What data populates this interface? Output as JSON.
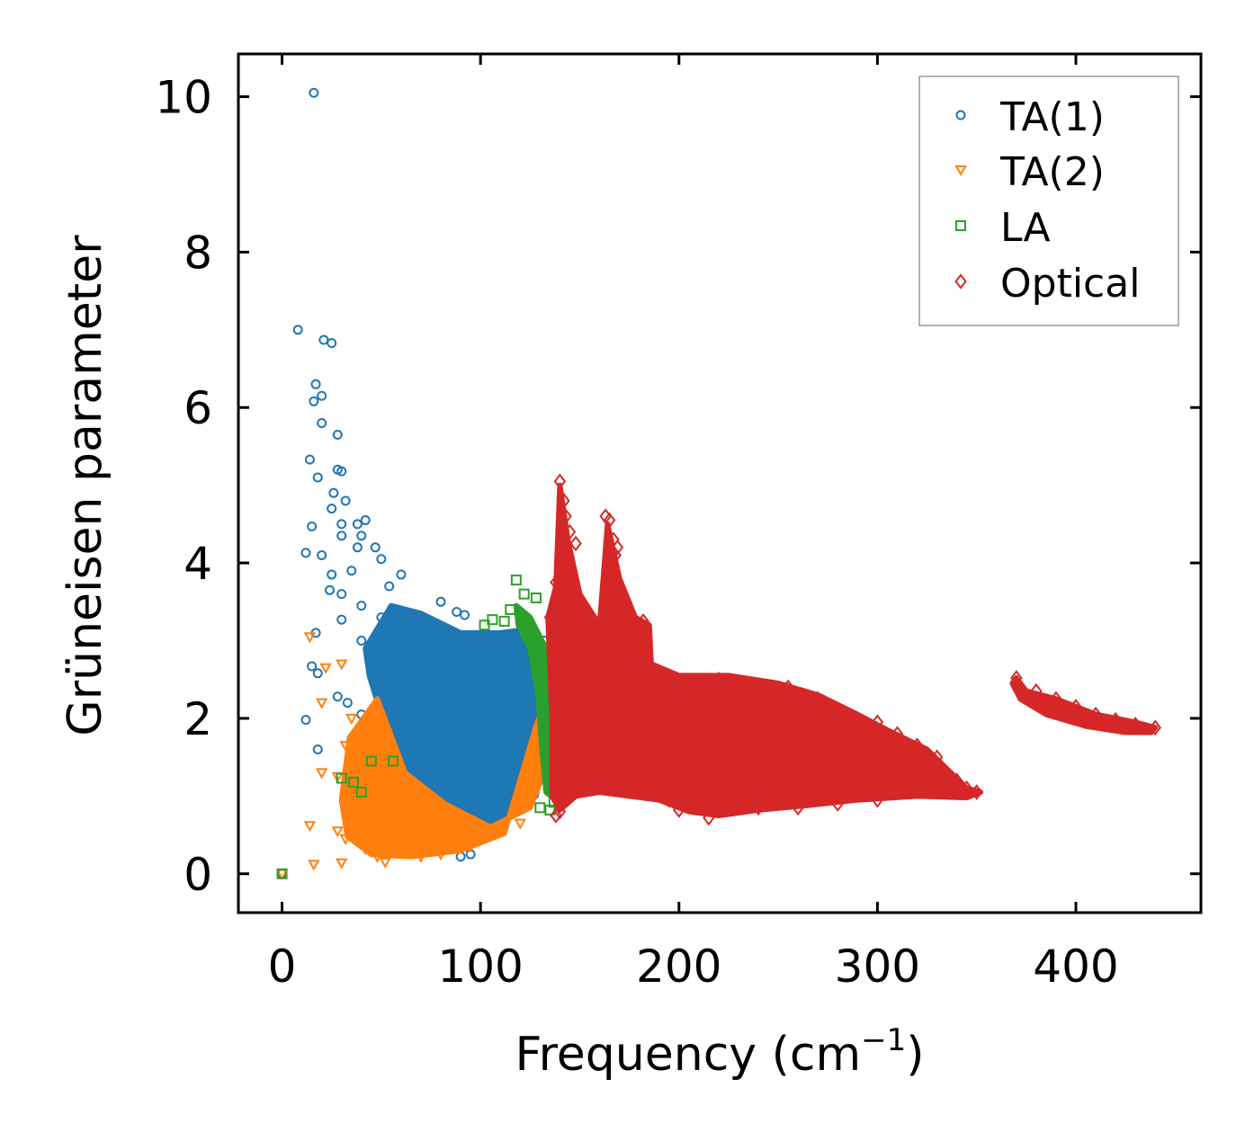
{
  "chart_data": {
    "type": "scatter",
    "title": "",
    "xlabel": "Frequency (cm",
    "xlabel_sup": "−1",
    "xlabel_end": ")",
    "ylabel": "Grüneisen parameter",
    "xlim": [
      -22,
      463
    ],
    "ylim": [
      -0.5,
      10.55
    ],
    "xticks": [
      0,
      100,
      200,
      300,
      400
    ],
    "yticks": [
      0,
      2,
      4,
      6,
      8,
      10
    ],
    "xtick_labels": [
      "0",
      "100",
      "200",
      "300",
      "400"
    ],
    "ytick_labels": [
      "0",
      "2",
      "4",
      "6",
      "8",
      "10"
    ],
    "legend_position": "top-right",
    "series": [
      {
        "name": "TA(1)",
        "marker": "circle",
        "color": "#1f77b4",
        "points": [
          [
            0,
            0
          ],
          [
            16,
            10.05
          ],
          [
            8,
            7
          ],
          [
            21,
            6.87
          ],
          [
            25,
            6.83
          ],
          [
            17,
            6.3
          ],
          [
            20,
            6.15
          ],
          [
            16,
            6.08
          ],
          [
            20,
            5.8
          ],
          [
            28,
            5.65
          ],
          [
            14,
            5.33
          ],
          [
            28,
            5.2
          ],
          [
            18,
            5.1
          ],
          [
            30,
            5.18
          ],
          [
            26,
            4.9
          ],
          [
            32,
            4.8
          ],
          [
            25,
            4.7
          ],
          [
            15,
            4.47
          ],
          [
            30,
            4.5
          ],
          [
            38,
            4.5
          ],
          [
            42,
            4.55
          ],
          [
            30,
            4.35
          ],
          [
            40,
            4.35
          ],
          [
            38,
            4.2
          ],
          [
            12,
            4.13
          ],
          [
            20,
            4.1
          ],
          [
            47,
            4.2
          ],
          [
            50,
            4.05
          ],
          [
            25,
            3.85
          ],
          [
            35,
            3.9
          ],
          [
            60,
            3.85
          ],
          [
            24,
            3.65
          ],
          [
            30,
            3.6
          ],
          [
            40,
            3.45
          ],
          [
            54,
            3.7
          ],
          [
            80,
            3.5
          ],
          [
            88,
            3.37
          ],
          [
            92,
            3.33
          ],
          [
            30,
            3.27
          ],
          [
            40,
            3.0
          ],
          [
            17,
            3.1
          ],
          [
            15,
            2.67
          ],
          [
            18,
            2.58
          ],
          [
            33,
            2.2
          ],
          [
            28,
            2.28
          ],
          [
            12,
            1.98
          ],
          [
            18,
            1.6
          ],
          [
            40,
            2.05
          ],
          [
            55,
            1.95
          ],
          [
            62,
            2.1
          ],
          [
            45,
            1.82
          ],
          [
            60,
            1.7
          ],
          [
            55,
            1.25
          ],
          [
            65,
            1.0
          ],
          [
            55,
            0.75
          ],
          [
            65,
            0.6
          ],
          [
            70,
            0.55
          ],
          [
            75,
            0.4
          ],
          [
            82,
            0.48
          ],
          [
            55,
            0.35
          ],
          [
            90,
            0.22
          ],
          [
            95,
            0.25
          ],
          [
            100,
            0.45
          ],
          [
            120,
            1.25
          ],
          [
            125,
            1.6
          ],
          [
            130,
            2.15
          ],
          [
            132,
            3.0
          ],
          [
            128,
            2.9
          ],
          [
            50,
            3.3
          ],
          [
            68,
            3.25
          ],
          [
            70,
            2.9
          ],
          [
            110,
            2.2
          ],
          [
            105,
            2.6
          ],
          [
            75,
            2.65
          ]
        ],
        "cloud": [
          [
            42,
            2.9
          ],
          [
            55,
            3.45
          ],
          [
            70,
            3.35
          ],
          [
            90,
            3.1
          ],
          [
            110,
            3.1
          ],
          [
            125,
            3.15
          ],
          [
            136,
            2.8
          ],
          [
            134,
            1.8
          ],
          [
            128,
            1.0
          ],
          [
            112,
            0.72
          ],
          [
            98,
            0.45
          ],
          [
            85,
            0.62
          ],
          [
            70,
            0.95
          ],
          [
            62,
            1.4
          ],
          [
            50,
            2.05
          ],
          [
            44,
            2.55
          ]
        ]
      },
      {
        "name": "TA(2)",
        "marker": "triangle-down",
        "color": "#ff7f0e",
        "points": [
          [
            0,
            0
          ],
          [
            14,
            3.05
          ],
          [
            30,
            2.7
          ],
          [
            22,
            2.65
          ],
          [
            20,
            2.2
          ],
          [
            35,
            2.0
          ],
          [
            32,
            1.65
          ],
          [
            40,
            1.7
          ],
          [
            20,
            1.3
          ],
          [
            28,
            1.25
          ],
          [
            38,
            1.0
          ],
          [
            48,
            1.8
          ],
          [
            52,
            1.6
          ],
          [
            14,
            0.62
          ],
          [
            16,
            0.12
          ],
          [
            28,
            0.55
          ],
          [
            32,
            0.45
          ],
          [
            30,
            0.14
          ],
          [
            36,
            0.62
          ],
          [
            42,
            0.32
          ],
          [
            48,
            0.22
          ],
          [
            52,
            0.15
          ],
          [
            60,
            0.3
          ],
          [
            70,
            0.22
          ],
          [
            80,
            0.25
          ],
          [
            95,
            0.35
          ],
          [
            100,
            0.45
          ],
          [
            110,
            0.55
          ],
          [
            120,
            0.65
          ],
          [
            125,
            0.9
          ],
          [
            128,
            1.5
          ],
          [
            132,
            1.9
          ],
          [
            136,
            2.2
          ],
          [
            138,
            2.5
          ],
          [
            140,
            2.3
          ]
        ],
        "cloud": [
          [
            34,
            1.75
          ],
          [
            48,
            2.25
          ],
          [
            62,
            1.3
          ],
          [
            82,
            0.9
          ],
          [
            105,
            0.6
          ],
          [
            125,
            0.85
          ],
          [
            135,
            1.5
          ],
          [
            141,
            2.5
          ],
          [
            138,
            2.6
          ],
          [
            128,
            1.9
          ],
          [
            112,
            0.52
          ],
          [
            90,
            0.3
          ],
          [
            65,
            0.22
          ],
          [
            45,
            0.25
          ],
          [
            33,
            0.48
          ],
          [
            30,
            0.95
          ]
        ]
      },
      {
        "name": "LA",
        "marker": "square",
        "color": "#2ca02c",
        "points": [
          [
            0,
            0
          ],
          [
            118,
            3.78
          ],
          [
            122,
            3.6
          ],
          [
            128,
            3.55
          ],
          [
            112,
            3.25
          ],
          [
            106,
            3.27
          ],
          [
            102,
            3.2
          ],
          [
            115,
            3.4
          ],
          [
            30,
            1.23
          ],
          [
            36,
            1.18
          ],
          [
            40,
            1.05
          ],
          [
            45,
            1.45
          ],
          [
            56,
            1.45
          ],
          [
            130,
            0.85
          ],
          [
            135,
            0.82
          ],
          [
            143,
            2.8
          ],
          [
            144,
            2.4
          ],
          [
            148,
            2.2
          ],
          [
            150,
            1.9
          ],
          [
            147,
            1.5
          ],
          [
            142,
            1.05
          ],
          [
            137,
            0.92
          ]
        ],
        "cloud": [
          [
            118,
            3.45
          ],
          [
            125,
            3.3
          ],
          [
            131,
            3.0
          ],
          [
            138,
            2.7
          ],
          [
            142,
            2.55
          ],
          [
            147,
            2.35
          ],
          [
            150,
            1.95
          ],
          [
            149,
            1.45
          ],
          [
            144,
            1.05
          ],
          [
            138,
            0.95
          ],
          [
            133,
            1.05
          ],
          [
            131,
            1.6
          ],
          [
            129,
            2.3
          ],
          [
            125,
            2.9
          ],
          [
            119,
            3.2
          ]
        ]
      },
      {
        "name": "Optical",
        "marker": "diamond",
        "color": "#d62728",
        "points": [
          [
            140,
            5.05
          ],
          [
            142,
            4.8
          ],
          [
            143,
            4.6
          ],
          [
            145,
            4.4
          ],
          [
            141,
            4.2
          ],
          [
            148,
            4.25
          ],
          [
            163,
            4.6
          ],
          [
            165,
            4.55
          ],
          [
            167,
            4.3
          ],
          [
            169,
            4.2
          ],
          [
            168,
            4.1
          ],
          [
            167,
            3.9
          ],
          [
            140,
            3.8
          ],
          [
            138,
            3.75
          ],
          [
            135,
            3.3
          ],
          [
            142,
            3.3
          ],
          [
            173,
            3.5
          ],
          [
            176,
            3.0
          ],
          [
            182,
            3.25
          ],
          [
            178,
            2.8
          ],
          [
            172,
            3.2
          ],
          [
            140,
            0.8
          ],
          [
            138,
            0.75
          ],
          [
            185,
            1.1
          ],
          [
            195,
            0.95
          ],
          [
            220,
            2.5
          ],
          [
            230,
            2.45
          ],
          [
            245,
            2.35
          ],
          [
            255,
            2.4
          ],
          [
            270,
            2.25
          ],
          [
            285,
            2.05
          ],
          [
            300,
            1.95
          ],
          [
            310,
            1.8
          ],
          [
            320,
            1.65
          ],
          [
            330,
            1.5
          ],
          [
            340,
            1.2
          ],
          [
            345,
            1.1
          ],
          [
            350,
            1.05
          ],
          [
            370,
            2.52
          ],
          [
            380,
            2.35
          ],
          [
            390,
            2.25
          ],
          [
            400,
            2.15
          ],
          [
            410,
            2.05
          ],
          [
            420,
            1.98
          ],
          [
            430,
            1.92
          ],
          [
            440,
            1.88
          ],
          [
            300,
            0.95
          ],
          [
            280,
            0.9
          ],
          [
            260,
            0.85
          ],
          [
            240,
            0.85
          ],
          [
            215,
            0.72
          ],
          [
            200,
            0.82
          ]
        ],
        "cloud": [
          [
            134,
            3.3
          ],
          [
            138,
            3.7
          ],
          [
            140,
            5.0
          ],
          [
            144,
            4.3
          ],
          [
            150,
            3.6
          ],
          [
            160,
            3.2
          ],
          [
            164,
            4.5
          ],
          [
            170,
            3.8
          ],
          [
            178,
            3.3
          ],
          [
            185,
            3.2
          ],
          [
            186,
            2.7
          ],
          [
            200,
            2.55
          ],
          [
            225,
            2.55
          ],
          [
            250,
            2.45
          ],
          [
            270,
            2.3
          ],
          [
            290,
            2.05
          ],
          [
            305,
            1.85
          ],
          [
            325,
            1.6
          ],
          [
            345,
            1.1
          ],
          [
            352,
            1.05
          ],
          [
            345,
            0.98
          ],
          [
            320,
            1.0
          ],
          [
            290,
            0.95
          ],
          [
            265,
            0.88
          ],
          [
            240,
            0.82
          ],
          [
            220,
            0.75
          ],
          [
            205,
            0.8
          ],
          [
            190,
            0.95
          ],
          [
            175,
            1.0
          ],
          [
            160,
            1.05
          ],
          [
            148,
            1.0
          ],
          [
            140,
            0.82
          ],
          [
            136,
            1.0
          ],
          [
            136,
            2.0
          ]
        ],
        "band": [
          [
            370,
            2.52
          ],
          [
            375,
            2.35
          ],
          [
            390,
            2.25
          ],
          [
            410,
            2.05
          ],
          [
            430,
            1.95
          ],
          [
            440,
            1.88
          ],
          [
            438,
            1.82
          ],
          [
            425,
            1.82
          ],
          [
            405,
            1.9
          ],
          [
            385,
            2.05
          ],
          [
            372,
            2.25
          ],
          [
            368,
            2.45
          ]
        ]
      }
    ]
  }
}
